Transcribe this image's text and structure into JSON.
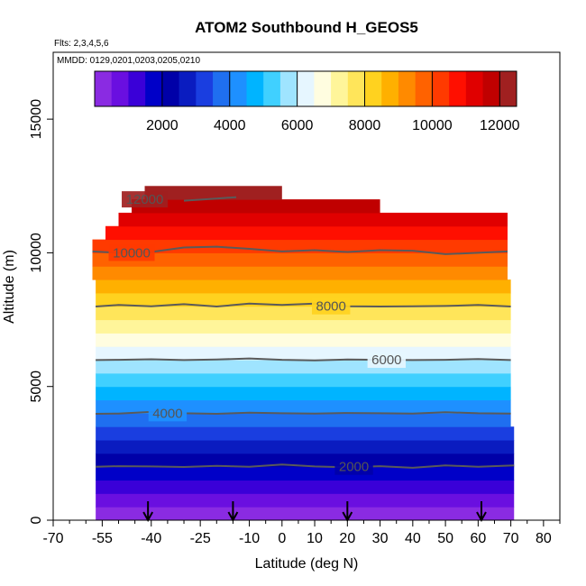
{
  "chart_data": {
    "type": "heatmap",
    "title": "ATOM2 Southbound H_GEOS5",
    "flights_note": "Flts: 2,3,4,5,6",
    "dates_note": "MMDD: 0129,0201,0203,0205,0210",
    "xlabel": "Latitude (deg N)",
    "ylabel": "Altitude (m)",
    "xlim": [
      -70,
      85
    ],
    "ylim": [
      0,
      17500
    ],
    "x_ticks": [
      -70,
      -55,
      -40,
      -25,
      -10,
      0,
      10,
      20,
      30,
      40,
      50,
      60,
      70,
      80
    ],
    "x_tick_labels": [
      "-70",
      "-55",
      "-40",
      "-25",
      "-10",
      "0",
      "10",
      "20",
      "30",
      "40",
      "50",
      "60",
      "70",
      "80"
    ],
    "x_minor_ticks": [
      -65,
      -60,
      -50,
      -45,
      -35,
      -30,
      -20,
      -15,
      -5,
      5,
      15,
      25,
      35,
      45,
      55,
      65,
      75,
      85
    ],
    "y_ticks": [
      0,
      5000,
      10000,
      15000
    ],
    "y_tick_labels": [
      "0",
      "5000",
      "10000",
      "15000"
    ],
    "colorbar": {
      "range": [
        0,
        12500
      ],
      "ticks": [
        2000,
        4000,
        6000,
        8000,
        10000,
        12000
      ],
      "tick_labels": [
        "2000",
        "4000",
        "6000",
        "8000",
        "10000",
        "12000"
      ],
      "colors": [
        "#8a2be2",
        "#6a0fe0",
        "#3a00d8",
        "#0000c8",
        "#0000a8",
        "#0a1cc0",
        "#1a3ee0",
        "#1f6ff0",
        "#1e90ff",
        "#00b4ff",
        "#40d0ff",
        "#9fe4ff",
        "#e6f6ff",
        "#fffde0",
        "#fff59a",
        "#ffe55a",
        "#ffd21f",
        "#ffb000",
        "#ff8a00",
        "#ff6200",
        "#ff3a00",
        "#ff0f00",
        "#e00000",
        "#c00000",
        "#a02020"
      ]
    },
    "field_layers": [
      {
        "alt": [
          0,
          500
        ],
        "value": 150,
        "extent": [
          -57,
          71
        ]
      },
      {
        "alt": [
          500,
          1000
        ],
        "value": 550,
        "extent": [
          -57,
          71
        ]
      },
      {
        "alt": [
          1000,
          1500
        ],
        "value": 1100,
        "extent": [
          -57,
          71
        ]
      },
      {
        "alt": [
          1500,
          2000
        ],
        "value": 1650,
        "extent": [
          -57,
          71
        ]
      },
      {
        "alt": [
          2000,
          2500
        ],
        "value": 2200,
        "extent": [
          -57,
          71
        ]
      },
      {
        "alt": [
          2500,
          3000
        ],
        "value": 2700,
        "extent": [
          -57,
          71
        ]
      },
      {
        "alt": [
          3000,
          3500
        ],
        "value": 3250,
        "extent": [
          -57,
          71
        ]
      },
      {
        "alt": [
          3500,
          4000
        ],
        "value": 3800,
        "extent": [
          -57,
          70
        ]
      },
      {
        "alt": [
          4000,
          4500
        ],
        "value": 4300,
        "extent": [
          -57,
          70
        ]
      },
      {
        "alt": [
          4500,
          5000
        ],
        "value": 4850,
        "extent": [
          -57,
          70
        ]
      },
      {
        "alt": [
          5000,
          5500
        ],
        "value": 5350,
        "extent": [
          -57,
          70
        ]
      },
      {
        "alt": [
          5500,
          6000
        ],
        "value": 5850,
        "extent": [
          -57,
          70
        ]
      },
      {
        "alt": [
          6000,
          6500
        ],
        "value": 6350,
        "extent": [
          -57,
          70
        ]
      },
      {
        "alt": [
          6500,
          7000
        ],
        "value": 6850,
        "extent": [
          -57,
          70
        ]
      },
      {
        "alt": [
          7000,
          7500
        ],
        "value": 7350,
        "extent": [
          -57,
          70
        ]
      },
      {
        "alt": [
          7500,
          8000
        ],
        "value": 7850,
        "extent": [
          -57,
          70
        ]
      },
      {
        "alt": [
          8000,
          8500
        ],
        "value": 8350,
        "extent": [
          -57,
          70
        ]
      },
      {
        "alt": [
          8500,
          9000
        ],
        "value": 8850,
        "extent": [
          -57,
          70
        ]
      },
      {
        "alt": [
          9000,
          9500
        ],
        "value": 9300,
        "extent": [
          -58,
          69
        ]
      },
      {
        "alt": [
          9500,
          10000
        ],
        "value": 9750,
        "extent": [
          -58,
          69
        ]
      },
      {
        "alt": [
          10000,
          10500
        ],
        "value": 10200,
        "extent": [
          -58,
          69
        ]
      },
      {
        "alt": [
          10500,
          11000
        ],
        "value": 10700,
        "extent": [
          -54,
          69
        ]
      },
      {
        "alt": [
          11000,
          11500
        ],
        "value": 11200,
        "extent": [
          -50,
          69
        ]
      },
      {
        "alt": [
          11500,
          12000
        ],
        "value": 11700,
        "extent": [
          -46,
          30
        ]
      },
      {
        "alt": [
          12000,
          12500
        ],
        "value": 12100,
        "extent": [
          -42,
          0
        ]
      }
    ],
    "contours": [
      {
        "level": 2000,
        "label": "2000",
        "label_x": 22,
        "x": [
          -57,
          -50,
          -40,
          -30,
          -20,
          -10,
          0,
          10,
          20,
          30,
          40,
          50,
          60,
          71
        ],
        "y": [
          2000,
          2020,
          2010,
          1990,
          2030,
          2000,
          2080,
          2010,
          1980,
          2020,
          1960,
          2050,
          2000,
          2050
        ]
      },
      {
        "level": 4000,
        "label": "4000",
        "label_x": -35,
        "x": [
          -57,
          -50,
          -40,
          -30,
          -20,
          -10,
          0,
          10,
          20,
          30,
          40,
          50,
          60,
          70
        ],
        "y": [
          3980,
          3990,
          4050,
          4000,
          3980,
          4020,
          4000,
          3990,
          4010,
          4000,
          3990,
          4040,
          4000,
          3990
        ]
      },
      {
        "level": 6000,
        "label": "6000",
        "label_x": 32,
        "x": [
          -57,
          -50,
          -40,
          -30,
          -20,
          -10,
          0,
          10,
          20,
          30,
          40,
          50,
          60,
          70
        ],
        "y": [
          5990,
          6000,
          6020,
          5990,
          6010,
          6050,
          6000,
          5980,
          6010,
          6000,
          5990,
          6000,
          6030,
          5990
        ]
      },
      {
        "level": 8000,
        "label": "8000",
        "label_x": 15,
        "x": [
          -57,
          -50,
          -40,
          -30,
          -20,
          -10,
          0,
          10,
          20,
          30,
          40,
          50,
          60,
          70
        ],
        "y": [
          7990,
          8050,
          8000,
          8080,
          7990,
          8100,
          8050,
          8100,
          8000,
          7990,
          8000,
          8010,
          8050,
          7990
        ]
      },
      {
        "level": 10000,
        "label": "10000",
        "label_x": -46,
        "x": [
          -58,
          -50,
          -40,
          -30,
          -20,
          -10,
          0,
          10,
          20,
          30,
          40,
          50,
          60,
          69
        ],
        "y": [
          10050,
          10000,
          10030,
          10200,
          10230,
          10150,
          10050,
          10100,
          10030,
          10100,
          10080,
          9950,
          10000,
          10050
        ]
      },
      {
        "level": 12000,
        "label": "12000",
        "label_x": -42,
        "x": [
          -30,
          -20,
          -14
        ],
        "y": [
          11950,
          12030,
          12080
        ]
      }
    ],
    "flight_markers_lat": [
      -41,
      -15,
      20,
      61
    ]
  }
}
